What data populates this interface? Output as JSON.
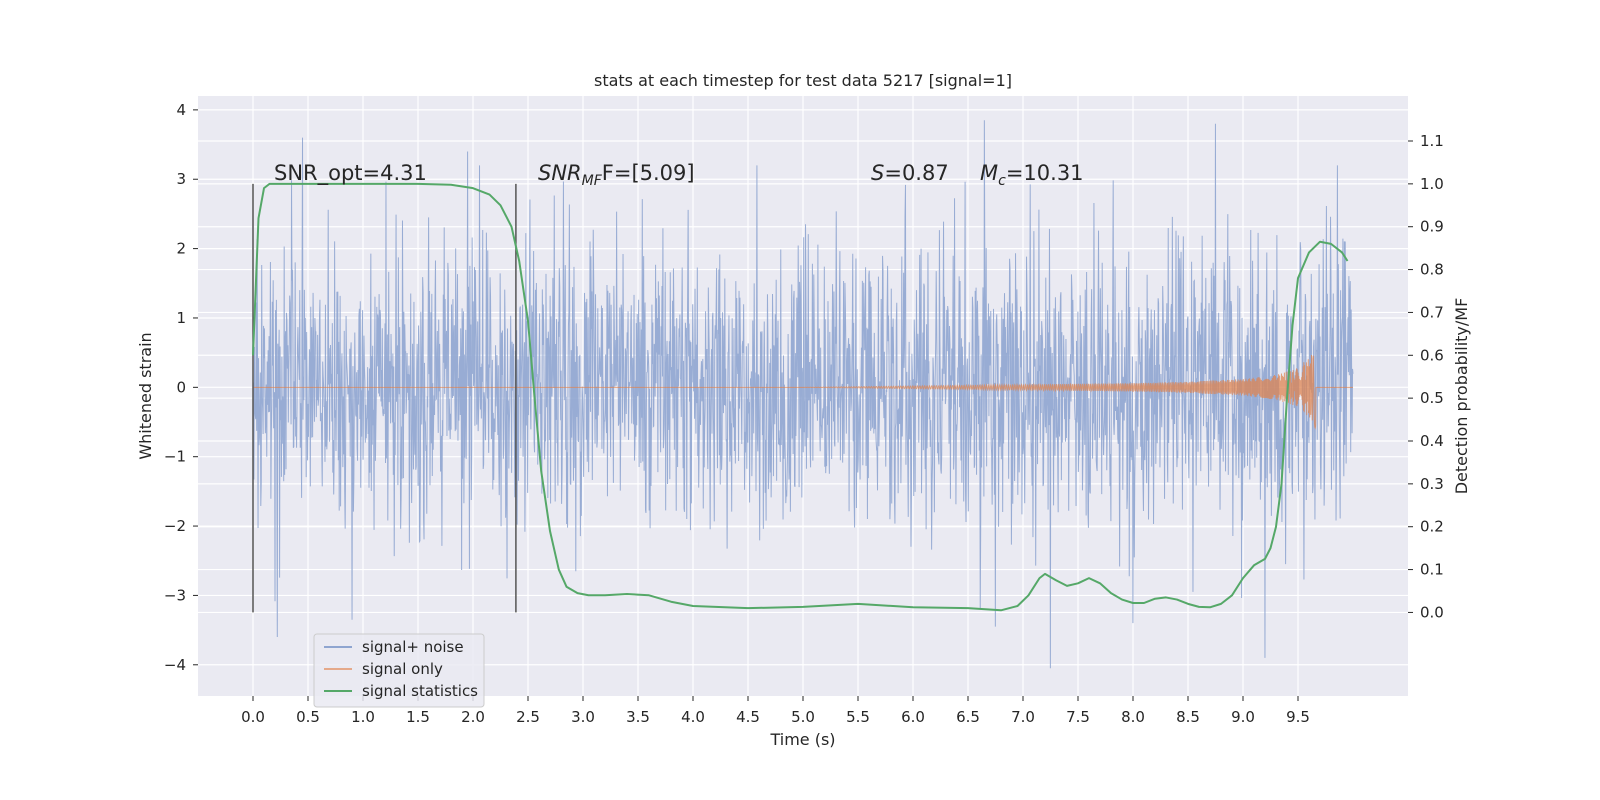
{
  "chart_data": {
    "type": "line",
    "title": "stats at each timestep for test data 5217 [signal=1]",
    "xlabel": "Time (s)",
    "ylabel": "Whitened strain",
    "y2label": "Detection probability/MF",
    "xlim": [
      -0.5,
      10.5
    ],
    "ylim": [
      -4.45,
      4.2
    ],
    "y2lim": [
      -0.195,
      1.205
    ],
    "x_ticks": [
      "0.0",
      "0.5",
      "1.0",
      "1.5",
      "2.0",
      "2.5",
      "3.0",
      "3.5",
      "4.0",
      "4.5",
      "5.0",
      "5.5",
      "6.0",
      "6.5",
      "7.0",
      "7.5",
      "8.0",
      "8.5",
      "9.0",
      "9.5"
    ],
    "y_ticks": [
      "4",
      "3",
      "2",
      "1",
      "0",
      "−1",
      "−2",
      "−3",
      "−4"
    ],
    "y2_ticks": [
      "1.1",
      "1.0",
      "0.9",
      "0.8",
      "0.7",
      "0.6",
      "0.5",
      "0.4",
      "0.3",
      "0.2",
      "0.1",
      "0.0"
    ],
    "grid": true,
    "legend_position": "lower-left",
    "legend": [
      "signal+ noise",
      "signal only",
      "signal statistics"
    ],
    "annotations": {
      "snr_opt": "SNR_opt=4.31",
      "snr_mf_label": "SNR",
      "snr_mf_sub": "MF",
      "snr_mf_value": "F=[5.09]",
      "s_label": "S",
      "s_value": "=0.87",
      "mc_label": "M",
      "mc_sub": "c",
      "mc_value": "=10.31"
    },
    "vertical_markers_x": [
      0.0,
      2.39
    ],
    "series": [
      {
        "name": "signal+ noise",
        "color": "#8fa5d0",
        "x_range": [
          0.0,
          10.0
        ],
        "band_typical": [
          -1.7,
          1.7
        ],
        "peaks_max": [
          [
            0.45,
            3.6
          ],
          [
            1.95,
            3.4
          ],
          [
            6.65,
            3.85
          ],
          [
            8.75,
            3.8
          ],
          [
            9.2,
            3.4
          ]
        ],
        "peaks_min": [
          [
            0.22,
            -3.6
          ],
          [
            0.9,
            -3.35
          ],
          [
            6.75,
            -3.45
          ],
          [
            7.25,
            -4.05
          ],
          [
            8.0,
            -3.4
          ],
          [
            9.2,
            -3.9
          ]
        ]
      },
      {
        "name": "signal only",
        "color": "#dd8452",
        "x": [
          0.0,
          5.0,
          6.0,
          7.0,
          8.0,
          8.5,
          9.0,
          9.3,
          9.5,
          9.63,
          9.66,
          9.67,
          10.0
        ],
        "amplitude": [
          0.0,
          0.0,
          0.02,
          0.04,
          0.06,
          0.08,
          0.12,
          0.18,
          0.28,
          0.48,
          0.6,
          0.0,
          0.0
        ]
      },
      {
        "name": "signal statistics",
        "color": "#55a868",
        "x": [
          0.0,
          0.05,
          0.1,
          0.15,
          0.2,
          0.3,
          0.5,
          1.0,
          1.5,
          1.8,
          2.0,
          2.15,
          2.25,
          2.35,
          2.42,
          2.5,
          2.56,
          2.62,
          2.7,
          2.78,
          2.85,
          2.95,
          3.05,
          3.2,
          3.4,
          3.6,
          3.8,
          4.0,
          4.5,
          5.0,
          5.5,
          6.0,
          6.5,
          6.8,
          6.95,
          7.05,
          7.15,
          7.2,
          7.3,
          7.4,
          7.5,
          7.6,
          7.7,
          7.8,
          7.9,
          8.0,
          8.1,
          8.2,
          8.3,
          8.4,
          8.5,
          8.6,
          8.7,
          8.8,
          8.9,
          9.0,
          9.1,
          9.2,
          9.25,
          9.3,
          9.35,
          9.4,
          9.45,
          9.5,
          9.6,
          9.7,
          9.8,
          9.9,
          9.95
        ],
        "y": [
          0.6,
          0.92,
          0.99,
          1.0,
          1.0,
          1.0,
          1.0,
          1.0,
          1.0,
          0.998,
          0.99,
          0.975,
          0.95,
          0.9,
          0.82,
          0.68,
          0.5,
          0.33,
          0.19,
          0.1,
          0.06,
          0.045,
          0.04,
          0.04,
          0.043,
          0.04,
          0.025,
          0.015,
          0.01,
          0.013,
          0.02,
          0.012,
          0.01,
          0.005,
          0.015,
          0.04,
          0.08,
          0.09,
          0.075,
          0.062,
          0.068,
          0.08,
          0.068,
          0.045,
          0.03,
          0.022,
          0.022,
          0.032,
          0.035,
          0.03,
          0.02,
          0.013,
          0.012,
          0.02,
          0.04,
          0.08,
          0.11,
          0.125,
          0.15,
          0.2,
          0.3,
          0.5,
          0.67,
          0.78,
          0.84,
          0.865,
          0.86,
          0.84,
          0.82
        ]
      }
    ]
  }
}
